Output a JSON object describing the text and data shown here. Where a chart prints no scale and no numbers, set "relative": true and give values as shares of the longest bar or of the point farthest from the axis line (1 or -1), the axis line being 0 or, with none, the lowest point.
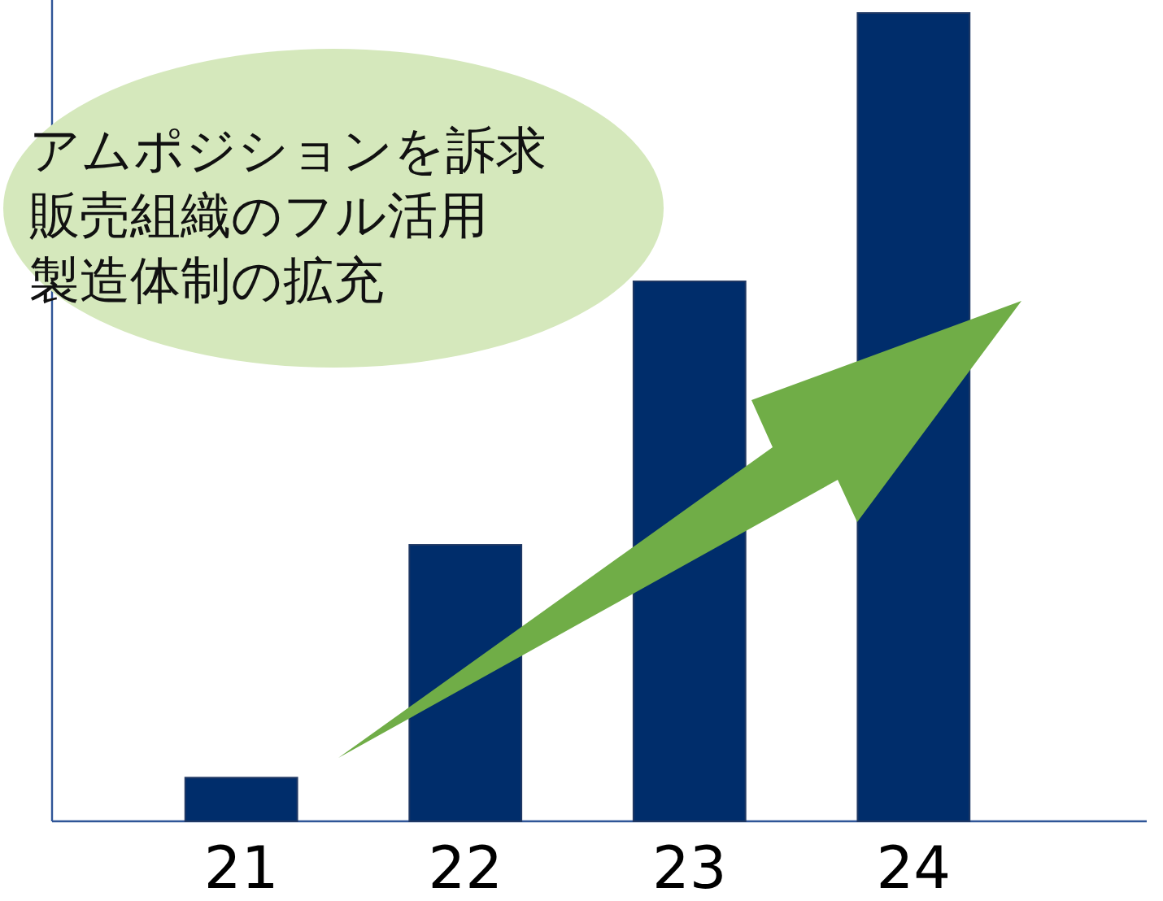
{
  "chart_data": {
    "type": "bar",
    "relative": true,
    "categories": [
      "21",
      "22",
      "23",
      "24"
    ],
    "values": [
      0.054,
      0.342,
      0.668,
      1
    ],
    "color": "#002d6b",
    "annotations": [
      "アムポジションを訴求",
      "販売組織のフル活用",
      "製造体制の拡充"
    ]
  }
}
